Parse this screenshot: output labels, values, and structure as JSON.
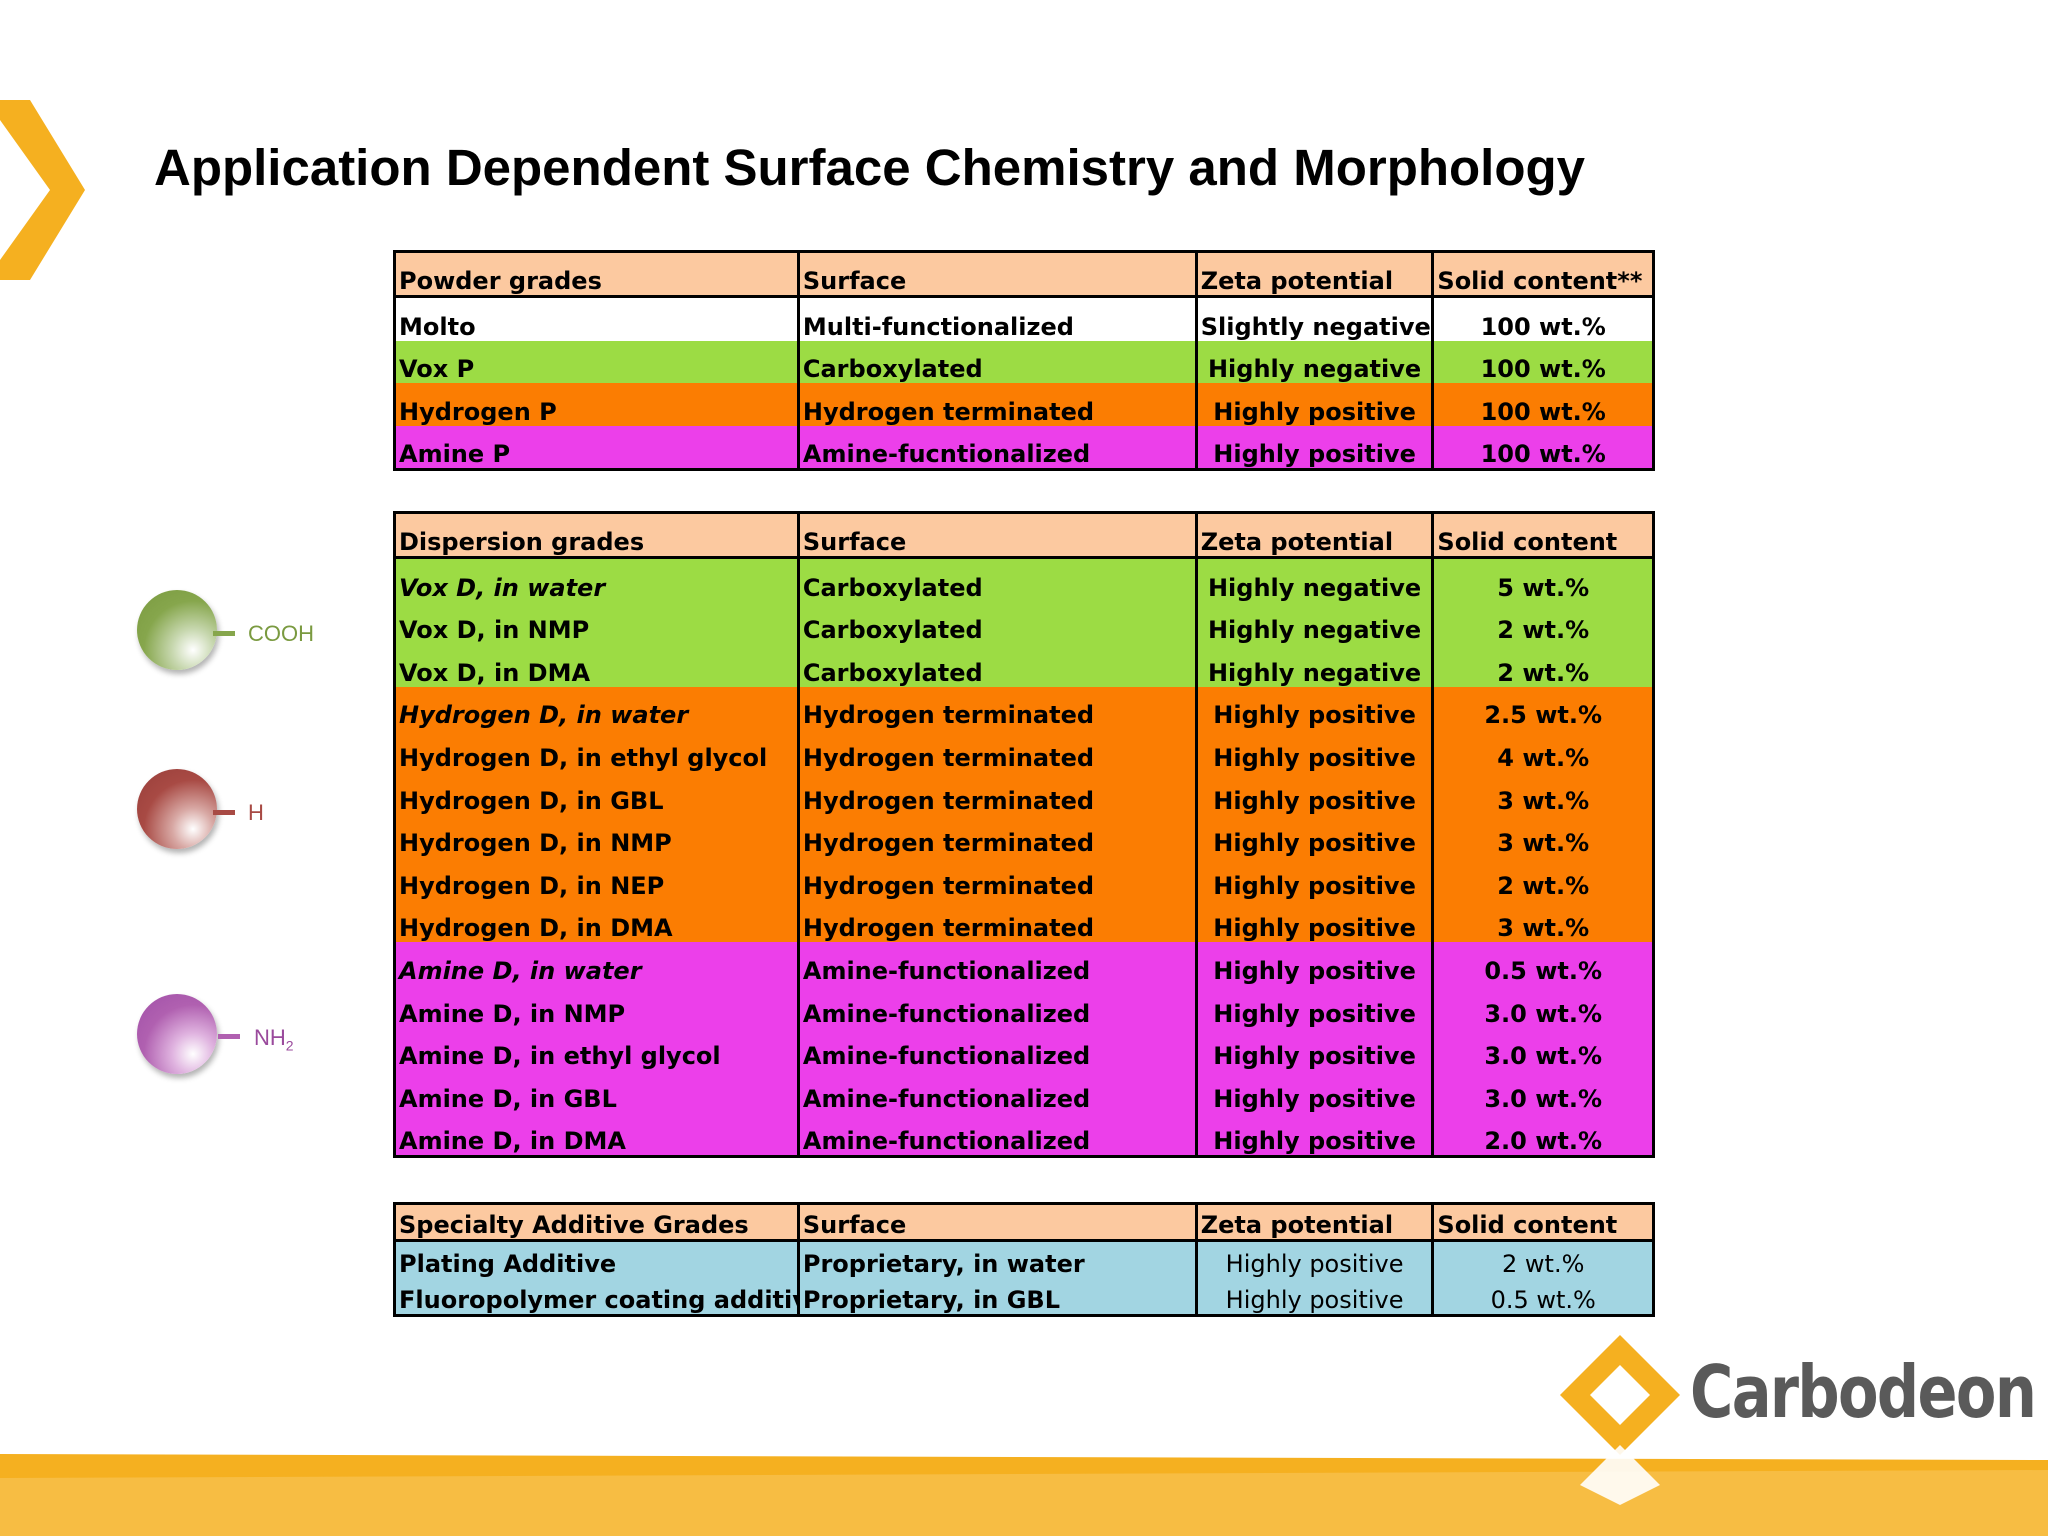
{
  "title": "Application Dependent Surface Chemistry and Morphology",
  "colors": {
    "header": "#fcc9a0",
    "green": "#9cdc44",
    "orange": "#fb7d02",
    "magenta": "#ec3fea",
    "blue": "#a2d5e2",
    "accent": "#f5b020"
  },
  "powder": {
    "headers": [
      "Powder grades",
      "Surface",
      "Zeta potential",
      "Solid content**"
    ],
    "rows": [
      {
        "grade": "Molto",
        "surface": "Multi-functionalized",
        "zeta": "Slightly negative",
        "solid": "100 wt.%"
      },
      {
        "grade": "Vox P",
        "surface": "Carboxylated",
        "zeta": "Highly negative",
        "solid": "100 wt.%"
      },
      {
        "grade": "Hydrogen P",
        "surface": "Hydrogen terminated",
        "zeta": "Highly positive",
        "solid": "100 wt.%"
      },
      {
        "grade": "Amine P",
        "surface": "Amine-fucntionalized",
        "zeta": "Highly positive",
        "solid": "100 wt.%"
      }
    ]
  },
  "dispersion": {
    "headers": [
      "Dispersion grades",
      "Surface",
      "Zeta potential",
      "Solid content"
    ],
    "rows": [
      {
        "grade": "Vox D, in water",
        "surface": "Carboxylated",
        "zeta": "Highly negative",
        "solid": "5 wt.%"
      },
      {
        "grade": "Vox D, in NMP",
        "surface": "Carboxylated",
        "zeta": "Highly negative",
        "solid": "2 wt.%"
      },
      {
        "grade": "Vox D, in DMA",
        "surface": "Carboxylated",
        "zeta": "Highly negative",
        "solid": "2 wt.%"
      },
      {
        "grade": "Hydrogen D, in water",
        "surface": "Hydrogen terminated",
        "zeta": "Highly positive",
        "solid": "2.5 wt.%"
      },
      {
        "grade": "Hydrogen D, in ethyl glycol",
        "surface": "Hydrogen terminated",
        "zeta": "Highly positive",
        "solid": "4 wt.%"
      },
      {
        "grade": "Hydrogen D, in GBL",
        "surface": "Hydrogen terminated",
        "zeta": "Highly positive",
        "solid": "3 wt.%"
      },
      {
        "grade": "Hydrogen D, in NMP",
        "surface": "Hydrogen terminated",
        "zeta": "Highly positive",
        "solid": "3 wt.%"
      },
      {
        "grade": "Hydrogen D, in NEP",
        "surface": "Hydrogen terminated",
        "zeta": "Highly positive",
        "solid": "2 wt.%"
      },
      {
        "grade": "Hydrogen D, in DMA",
        "surface": "Hydrogen terminated",
        "zeta": "Highly positive",
        "solid": "3 wt.%"
      },
      {
        "grade": "Amine D, in water",
        "surface": "Amine-functionalized",
        "zeta": "Highly positive",
        "solid": "0.5 wt.%"
      },
      {
        "grade": "Amine D, in NMP",
        "surface": "Amine-functionalized",
        "zeta": "Highly positive",
        "solid": "3.0 wt.%"
      },
      {
        "grade": "Amine D, in ethyl glycol",
        "surface": "Amine-functionalized",
        "zeta": "Highly positive",
        "solid": "3.0 wt.%"
      },
      {
        "grade": "Amine D, in GBL",
        "surface": "Amine-functionalized",
        "zeta": "Highly positive",
        "solid": "3.0 wt.%"
      },
      {
        "grade": "Amine D, in DMA",
        "surface": "Amine-functionalized",
        "zeta": "Highly positive",
        "solid": "2.0 wt.%"
      }
    ]
  },
  "specialty": {
    "headers": [
      "Specialty Additive Grades",
      "Surface",
      "Zeta potential",
      "Solid content"
    ],
    "rows": [
      {
        "grade": "Plating Additive",
        "surface": "Proprietary, in water",
        "zeta": "Highly positive",
        "solid": "2 wt.%"
      },
      {
        "grade": "Fluoropolymer coating additive",
        "surface": "Proprietary, in GBL",
        "zeta": "Highly positive",
        "solid": "0.5 wt.%"
      }
    ]
  },
  "legend": {
    "cooh": "COOH",
    "h": "H",
    "nh": "NH",
    "nh_sub": "2"
  },
  "logo": {
    "text": "Carbodeon"
  }
}
